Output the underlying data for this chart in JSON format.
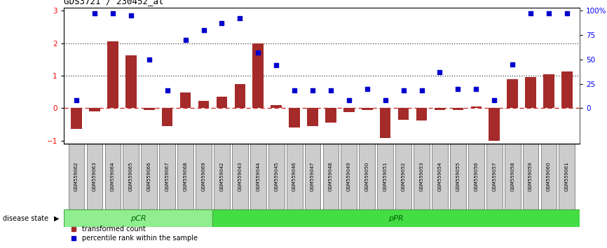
{
  "title": "GDS3721 / 230452_at",
  "samples": [
    "GSM559062",
    "GSM559063",
    "GSM559064",
    "GSM559065",
    "GSM559066",
    "GSM559067",
    "GSM559068",
    "GSM559069",
    "GSM559042",
    "GSM559043",
    "GSM559044",
    "GSM559045",
    "GSM559046",
    "GSM559047",
    "GSM559048",
    "GSM559049",
    "GSM559050",
    "GSM559051",
    "GSM559052",
    "GSM559053",
    "GSM559054",
    "GSM559055",
    "GSM559056",
    "GSM559057",
    "GSM559058",
    "GSM559059",
    "GSM559060",
    "GSM559061"
  ],
  "transformed_count": [
    -0.65,
    -0.1,
    2.05,
    1.62,
    -0.05,
    -0.55,
    0.48,
    0.22,
    0.35,
    0.75,
    2.0,
    0.1,
    -0.6,
    -0.55,
    -0.45,
    -0.12,
    -0.05,
    -0.92,
    -0.35,
    -0.38,
    -0.05,
    -0.05,
    0.05,
    -1.0,
    0.9,
    0.95,
    1.05,
    1.12
  ],
  "percentile_rank": [
    8,
    97,
    97,
    95,
    50,
    18,
    70,
    80,
    87,
    92,
    57,
    44,
    18,
    18,
    18,
    8,
    20,
    8,
    18,
    18,
    37,
    20,
    20,
    8,
    45,
    97,
    97,
    97
  ],
  "pCR_count": 8,
  "bar_color": "#A52A2A",
  "dot_color": "#0000CC",
  "ylim": [
    -1.1,
    3.1
  ],
  "yticks_left": [
    -1,
    0,
    1,
    2,
    3
  ],
  "yticks_right": [
    0,
    25,
    50,
    75,
    100
  ],
  "hline_y": [
    1.0,
    2.0
  ],
  "zero_line_color": "#CC2222",
  "grid_color": "#444444",
  "pCR_color": "#90EE90",
  "pPR_color": "#44DD44",
  "border_color": "#44AA44",
  "legend_transformed": "transformed count",
  "legend_percentile": "percentile rank within the sample",
  "disease_state_label": "disease state"
}
